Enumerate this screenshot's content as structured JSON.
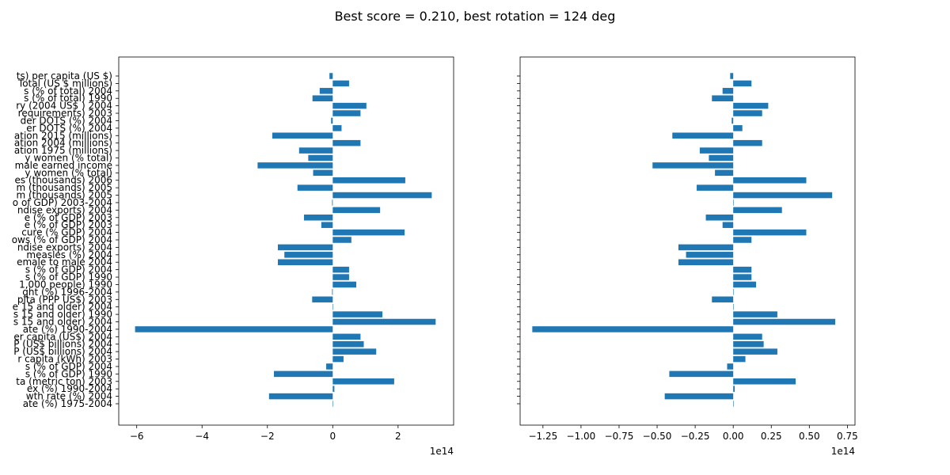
{
  "title": "Best score = 0.210, best rotation = 124 deg",
  "colors": {
    "bar": "#1f77b4",
    "axis": "#000000",
    "background": "#ffffff"
  },
  "chart_data": [
    {
      "type": "bar",
      "orientation": "horizontal",
      "name": "left-panel",
      "xlim": [
        -6.55,
        3.7
      ],
      "x_ticks": [
        -6,
        -4,
        -2,
        0,
        2
      ],
      "x_tick_labels": [
        "−6",
        "−4",
        "−2",
        "0",
        "2"
      ],
      "offset_label": "1e14",
      "ylabels_visible": true,
      "categories": [
        "ts) per capita (US $)",
        "Total (US $ millions)",
        "s (% of total) 2004",
        "s (% of total) 1990",
        "ry (2004 US$ ) 2004",
        "requirements) 2003",
        "der DOTS (%) 2004",
        "er DOTS (%) 2004",
        "ation 2015 (millions)",
        "ation 2004 (millions)",
        "ation 1975 (millions)",
        "y women (% total)",
        "male earned income",
        "y women (% total)",
        "es (thousands) 2006",
        "m (thousands) 2005",
        "m (thousands) 2005",
        "o of GDP) 2003-2004",
        "ndise exports) 2004",
        "e (% of GDP) 2003",
        "e (% of GDP) 2003",
        "cure (% GDP) 2004",
        "ows (% of GDP) 2004",
        "ndise exports) 2004",
        "measles (%) 2004",
        "emale to male 2004",
        "s (% of GDP) 2004",
        "s (% of GDP) 1990",
        "1,000 people) 1990",
        "ght (%) 1996-2004",
        "pita (PPP US$) 2003",
        "e 15 and older) 2004",
        "s 15 and older) 1990",
        "s 15 and older) 2004",
        "ate (%) 1990-2004",
        "er capita (US$) 2004",
        "P (US$ billions) 2004",
        "P (US$ billions) 2004",
        "r capita (kWh) 2003",
        "s (% of GDP) 2004",
        "s (% of GDP) 1990",
        "ta (metric ton) 2003",
        "ex (%) 1990-2004",
        "wth rate (%) 2004",
        "ate (%) 1975-2004"
      ],
      "values": [
        -0.1,
        0.5,
        -0.4,
        -0.62,
        1.03,
        0.85,
        -0.05,
        0.27,
        -1.85,
        0.85,
        -1.03,
        -0.75,
        -2.3,
        -0.6,
        2.22,
        -1.08,
        3.03,
        -0.02,
        1.45,
        -0.88,
        -0.35,
        2.2,
        0.57,
        -1.68,
        -1.48,
        -1.68,
        0.5,
        0.5,
        0.72,
        -0.02,
        -0.63,
        0.01,
        1.52,
        3.15,
        -6.05,
        0.85,
        0.95,
        1.33,
        0.33,
        -0.2,
        -1.8,
        1.88,
        0.05,
        -1.95,
        0.0
      ]
    },
    {
      "type": "bar",
      "orientation": "horizontal",
      "name": "right-panel",
      "xlim": [
        -1.4,
        0.8
      ],
      "x_ticks": [
        -1.25,
        -1.0,
        -0.75,
        -0.5,
        -0.25,
        0.0,
        0.25,
        0.5,
        0.75
      ],
      "x_tick_labels": [
        "−1.25",
        "−1.00",
        "−0.75",
        "−0.50",
        "−0.25",
        "0.00",
        "0.25",
        "0.50",
        "0.75"
      ],
      "offset_label": "1e14",
      "ylabels_visible": false,
      "values": [
        -0.02,
        0.12,
        -0.07,
        -0.14,
        0.23,
        0.19,
        -0.01,
        0.06,
        -0.4,
        0.19,
        -0.22,
        -0.16,
        -0.53,
        -0.12,
        0.48,
        -0.24,
        0.65,
        0.0,
        0.32,
        -0.18,
        -0.07,
        0.48,
        0.12,
        -0.36,
        -0.31,
        -0.36,
        0.12,
        0.12,
        0.15,
        0.0,
        -0.14,
        0.0,
        0.29,
        0.67,
        -1.32,
        0.19,
        0.2,
        0.29,
        0.08,
        -0.04,
        -0.42,
        0.41,
        0.01,
        -0.45,
        0.0
      ]
    }
  ]
}
